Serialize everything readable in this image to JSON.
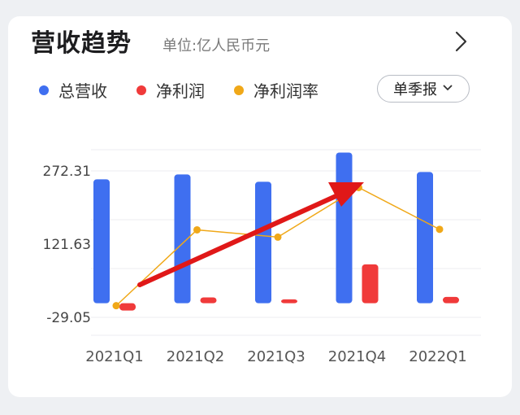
{
  "header": {
    "title": "营收趋势",
    "unit": "单位:亿人民币元",
    "more_icon": "chevron-right-icon"
  },
  "legend": [
    {
      "label": "总营收",
      "color": "#3f6ff0"
    },
    {
      "label": "净利润",
      "color": "#f03a3a"
    },
    {
      "label": "净利润率",
      "color": "#f0a818"
    }
  ],
  "period_select": {
    "label": "单季报",
    "icon": "chevron-down-icon"
  },
  "chart_data": {
    "type": "bar",
    "categories": [
      "2021Q1",
      "2021Q2",
      "2021Q3",
      "2021Q4",
      "2022Q1"
    ],
    "yticks": [
      "272.31",
      "121.63",
      "-29.05"
    ],
    "ylim": [
      -29.05,
      272.31
    ],
    "series": [
      {
        "name": "总营收",
        "type": "bar",
        "color": "#3f6ff0",
        "values": [
          255,
          265,
          250,
          310,
          270
        ]
      },
      {
        "name": "净利润",
        "type": "bar",
        "color": "#f03a3a",
        "values": [
          -15,
          12,
          8,
          80,
          13
        ]
      },
      {
        "name": "净利润率",
        "type": "line",
        "color": "#f0a818",
        "values": [
          -5,
          151,
          136,
          238,
          152
        ]
      }
    ],
    "grid": true,
    "annotation": "red trend arrow rising from 2021Q1 to 2021Q4"
  }
}
